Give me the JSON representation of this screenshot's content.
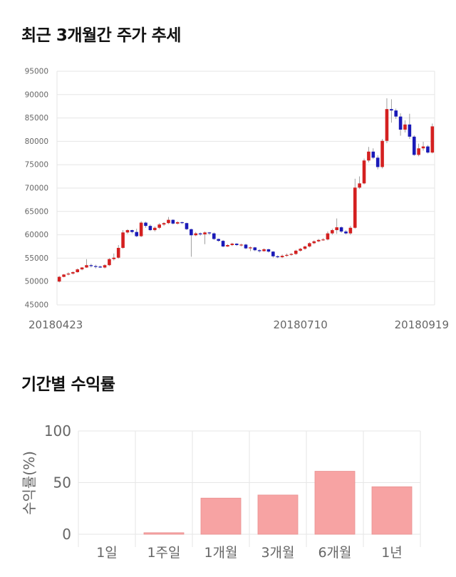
{
  "titles": {
    "price_trend": "최근 3개월간 주가 추세",
    "period_returns": "기간별 수익률"
  },
  "colors": {
    "up": "#d42020",
    "down": "#1a1ab8",
    "bar": "#f7a3a3",
    "bar_border": "#e89090",
    "grid": "#e6e6e6"
  },
  "chart_data": [
    {
      "type": "candlestick",
      "ylim": [
        45000,
        95000
      ],
      "y_ticks": [
        45000,
        50000,
        55000,
        60000,
        65000,
        70000,
        75000,
        80000,
        85000,
        90000,
        95000
      ],
      "x_tick_labels": [
        {
          "label": "20180423",
          "index": 0
        },
        {
          "label": "20180710",
          "index": 53
        },
        {
          "label": "20180919",
          "index": 102
        }
      ],
      "grid": true,
      "candles": [
        [
          50000,
          51000,
          49800,
          51200
        ],
        [
          51000,
          51500,
          50900,
          51600
        ],
        [
          51500,
          51700,
          51300,
          52000
        ],
        [
          51700,
          52000,
          51500,
          52200
        ],
        [
          52000,
          52600,
          51900,
          52800
        ],
        [
          52600,
          53000,
          52400,
          53100
        ],
        [
          53000,
          53500,
          52900,
          54800
        ],
        [
          53500,
          53300,
          53000,
          53800
        ],
        [
          53300,
          53200,
          52800,
          53600
        ],
        [
          53200,
          53000,
          52900,
          53400
        ],
        [
          53000,
          53500,
          52800,
          53700
        ],
        [
          53500,
          54800,
          53300,
          55000
        ],
        [
          54800,
          55100,
          54500,
          56000
        ],
        [
          55100,
          57200,
          54900,
          57800
        ],
        [
          57200,
          60500,
          57000,
          61000
        ],
        [
          60500,
          61000,
          60200,
          61200
        ],
        [
          61000,
          60600,
          60300,
          61100
        ],
        [
          60600,
          59700,
          59500,
          61300
        ],
        [
          59700,
          62600,
          59500,
          62900
        ],
        [
          62600,
          61900,
          61500,
          62800
        ],
        [
          61900,
          61000,
          60800,
          62200
        ],
        [
          61000,
          61500,
          60700,
          61800
        ],
        [
          61500,
          62200,
          61200,
          62500
        ],
        [
          62200,
          62500,
          61900,
          62700
        ],
        [
          62500,
          63200,
          62300,
          63800
        ],
        [
          63200,
          62400,
          62200,
          63300
        ],
        [
          62400,
          62700,
          62200,
          62900
        ],
        [
          62700,
          62500,
          62300,
          62800
        ],
        [
          62500,
          61200,
          61000,
          62600
        ],
        [
          61200,
          59900,
          55300,
          61300
        ],
        [
          59900,
          60300,
          59700,
          60600
        ],
        [
          60300,
          60100,
          59800,
          60500
        ],
        [
          60100,
          60500,
          58000,
          60700
        ],
        [
          60500,
          60300,
          60000,
          60600
        ],
        [
          60300,
          59100,
          58900,
          60500
        ],
        [
          59100,
          58700,
          58500,
          59200
        ],
        [
          58700,
          57500,
          57300,
          58900
        ],
        [
          57500,
          57800,
          57400,
          58000
        ],
        [
          57800,
          58100,
          57600,
          58300
        ],
        [
          58100,
          57800,
          57600,
          58200
        ],
        [
          57800,
          57900,
          57500,
          58100
        ],
        [
          57900,
          57100,
          56900,
          58100
        ],
        [
          57100,
          57300,
          56500,
          57500
        ],
        [
          57300,
          56700,
          56500,
          57400
        ],
        [
          56700,
          56500,
          56200,
          56900
        ],
        [
          56500,
          56900,
          56400,
          57100
        ],
        [
          56900,
          56400,
          56200,
          57000
        ],
        [
          56400,
          55400,
          55100,
          56500
        ],
        [
          55400,
          55200,
          55000,
          55600
        ],
        [
          55200,
          55500,
          55000,
          55800
        ],
        [
          55500,
          55700,
          55300,
          56000
        ],
        [
          55700,
          55900,
          55500,
          56100
        ],
        [
          55900,
          56600,
          55700,
          56800
        ],
        [
          56600,
          57000,
          56400,
          57200
        ],
        [
          57000,
          57500,
          56800,
          57700
        ],
        [
          57500,
          58200,
          57300,
          58400
        ],
        [
          58200,
          58600,
          58000,
          58800
        ],
        [
          58600,
          58900,
          58400,
          59100
        ],
        [
          58900,
          59000,
          58700,
          59300
        ],
        [
          59000,
          60300,
          58800,
          60700
        ],
        [
          60300,
          61000,
          60000,
          61300
        ],
        [
          61000,
          61600,
          60200,
          63500
        ],
        [
          61600,
          60700,
          60400,
          61800
        ],
        [
          60700,
          60300,
          60100,
          61000
        ],
        [
          60300,
          61500,
          60000,
          61900
        ],
        [
          61500,
          70100,
          61300,
          72000
        ],
        [
          70100,
          71000,
          69800,
          72500
        ],
        [
          71000,
          75900,
          70800,
          76300
        ],
        [
          75900,
          77800,
          75500,
          78800
        ],
        [
          77800,
          76500,
          76200,
          78500
        ],
        [
          76500,
          74500,
          74000,
          77000
        ],
        [
          74500,
          80100,
          74200,
          80500
        ],
        [
          80100,
          86900,
          79600,
          89200
        ],
        [
          86900,
          86600,
          84000,
          89000
        ],
        [
          86600,
          85300,
          84800,
          87000
        ],
        [
          85300,
          82500,
          81200,
          86000
        ],
        [
          82500,
          83600,
          81900,
          84500
        ],
        [
          83600,
          81000,
          80500,
          85900
        ],
        [
          81000,
          77100,
          76900,
          81300
        ],
        [
          77100,
          78500,
          76800,
          79500
        ],
        [
          78500,
          78900,
          78000,
          79900
        ],
        [
          78900,
          77600,
          77400,
          79200
        ],
        [
          77600,
          83200,
          77400,
          83800
        ]
      ]
    },
    {
      "type": "bar",
      "categories": [
        "1일",
        "1주일",
        "1개월",
        "3개월",
        "6개월",
        "1년"
      ],
      "values": [
        0,
        1.5,
        35,
        38,
        61,
        46
      ],
      "ylim": [
        0,
        100
      ],
      "y_ticks": [
        0,
        50,
        100
      ],
      "ylabel": "수익률(%)",
      "grid": true
    }
  ]
}
